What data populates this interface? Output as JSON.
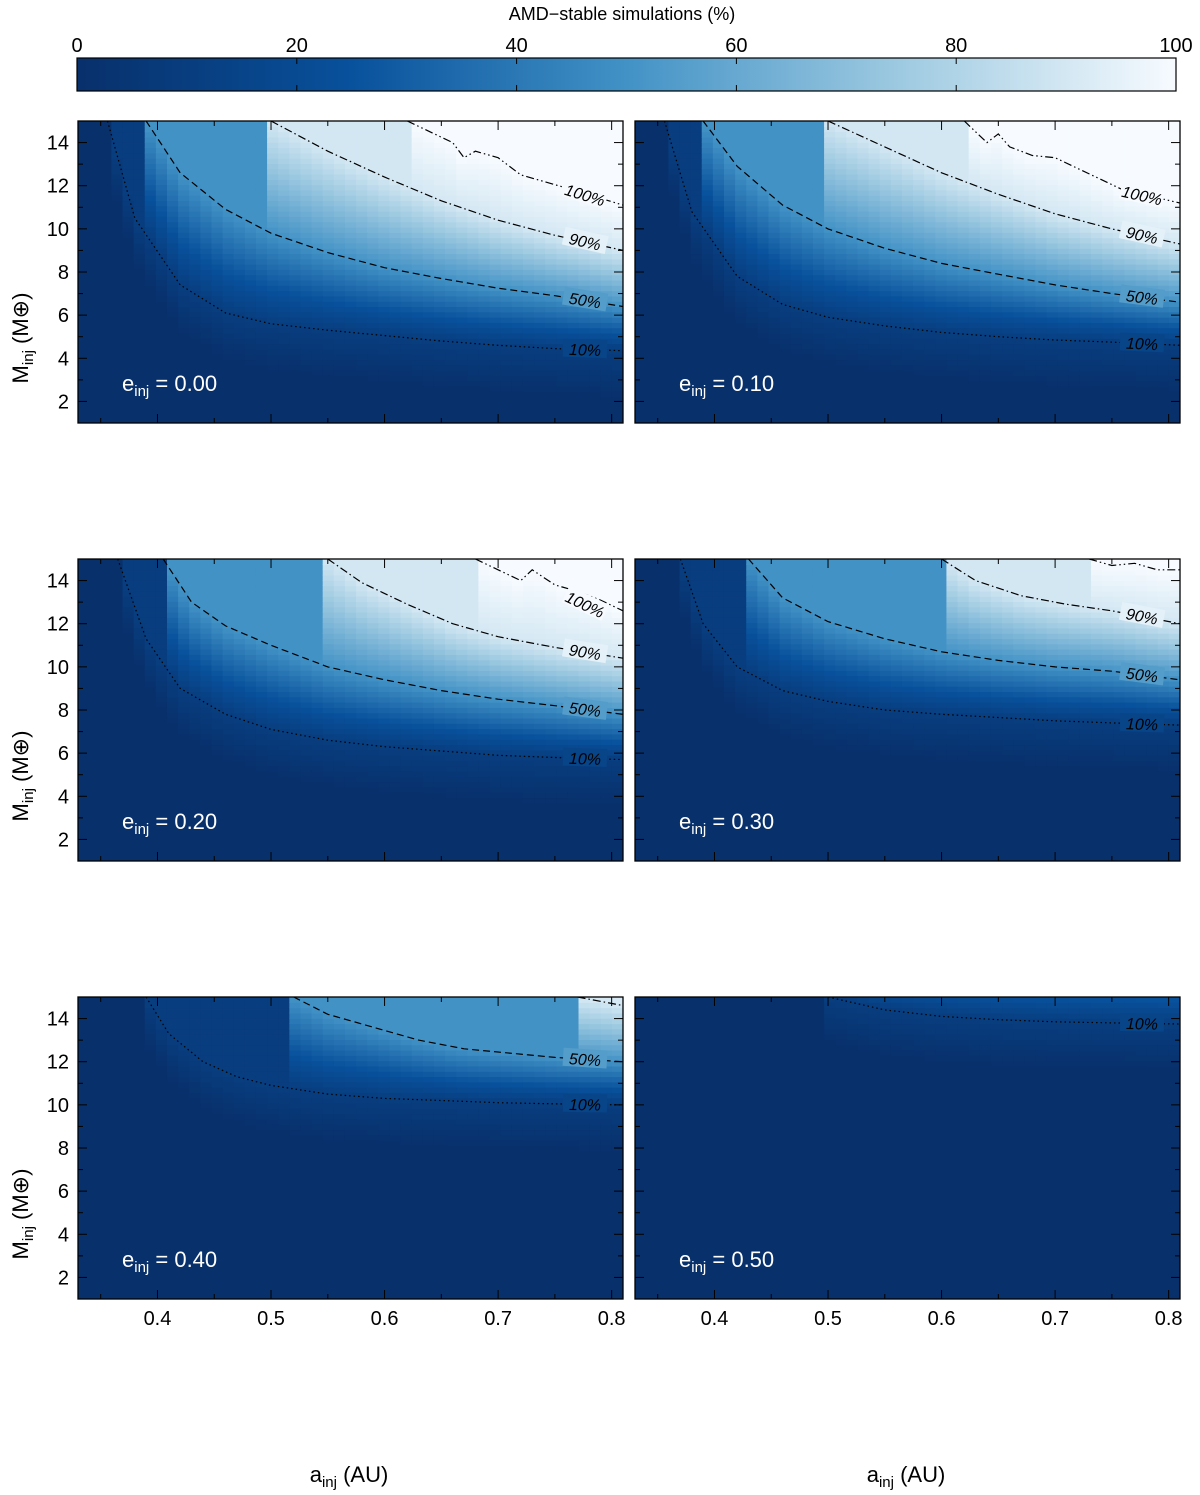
{
  "chart_data": {
    "type": "heatmap",
    "colorbar": {
      "title": "AMD−stable simulations (%)",
      "range": [
        0,
        100
      ],
      "ticks": [
        0,
        20,
        40,
        60,
        80,
        100
      ],
      "colors": [
        "#08306b",
        "#08519c",
        "#4292c6",
        "#9ecae1",
        "#f7fbff"
      ]
    },
    "xlabel_main": "a",
    "xlabel_sub": "inj",
    "xlabel_unit": " (AU)",
    "ylabel_main": "M",
    "ylabel_sub": "inj",
    "ylabel_unit": " (M⊕)",
    "xlim": [
      0.33,
      0.81
    ],
    "ylim": [
      1,
      15
    ],
    "xticks": [
      0.4,
      0.5,
      0.6,
      0.7,
      0.8
    ],
    "yticks": [
      2,
      4,
      6,
      8,
      10,
      12,
      14
    ],
    "grid": false,
    "panels": [
      {
        "e_prefix": "e",
        "e_sub": "inj",
        "e_value": " = 0.00",
        "contours": [
          {
            "level": 10,
            "label": "10%",
            "style": "dotted",
            "x": [
              0.356,
              0.38,
              0.42,
              0.46,
              0.5,
              0.55,
              0.6,
              0.65,
              0.7,
              0.75,
              0.81
            ],
            "y": [
              15,
              10.5,
              7.4,
              6.1,
              5.6,
              5.3,
              5.05,
              4.8,
              4.6,
              4.45,
              4.35
            ]
          },
          {
            "level": 50,
            "label": "50%",
            "style": "dashed",
            "x": [
              0.39,
              0.42,
              0.46,
              0.5,
              0.55,
              0.6,
              0.65,
              0.7,
              0.75,
              0.81
            ],
            "y": [
              15,
              12.6,
              10.9,
              9.8,
              8.9,
              8.2,
              7.7,
              7.25,
              6.9,
              6.4
            ]
          },
          {
            "level": 90,
            "label": "90%",
            "style": "dashdot",
            "x": [
              0.5,
              0.55,
              0.6,
              0.65,
              0.7,
              0.75,
              0.81
            ],
            "y": [
              15,
              13.6,
              12.4,
              11.3,
              10.4,
              9.7,
              9.0
            ]
          },
          {
            "level": 100,
            "label": "100%",
            "style": "dashdotdot",
            "x": [
              0.62,
              0.64,
              0.66,
              0.67,
              0.68,
              0.7,
              0.72,
              0.74,
              0.76,
              0.81
            ],
            "y": [
              15,
              14.5,
              14.0,
              13.3,
              13.6,
              13.3,
              12.5,
              12.2,
              11.9,
              11.1
            ]
          }
        ]
      },
      {
        "e_prefix": "e",
        "e_sub": "inj",
        "e_value": " = 0.10",
        "contours": [
          {
            "level": 10,
            "label": "10%",
            "style": "dotted",
            "x": [
              0.356,
              0.38,
              0.42,
              0.46,
              0.5,
              0.55,
              0.6,
              0.65,
              0.7,
              0.75,
              0.81
            ],
            "y": [
              15,
              10.8,
              7.8,
              6.5,
              5.9,
              5.5,
              5.2,
              5.0,
              4.85,
              4.75,
              4.6
            ]
          },
          {
            "level": 50,
            "label": "50%",
            "style": "dashed",
            "x": [
              0.39,
              0.42,
              0.46,
              0.5,
              0.55,
              0.6,
              0.65,
              0.7,
              0.75,
              0.81
            ],
            "y": [
              15,
              12.9,
              11.1,
              10.0,
              9.1,
              8.4,
              7.9,
              7.4,
              7.0,
              6.6
            ]
          },
          {
            "level": 90,
            "label": "90%",
            "style": "dashdot",
            "x": [
              0.5,
              0.55,
              0.6,
              0.65,
              0.7,
              0.75,
              0.81
            ],
            "y": [
              15,
              13.8,
              12.6,
              11.6,
              10.7,
              10.0,
              9.3
            ]
          },
          {
            "level": 100,
            "label": "100%",
            "style": "dashdotdot",
            "x": [
              0.62,
              0.63,
              0.64,
              0.65,
              0.66,
              0.68,
              0.7,
              0.72,
              0.74,
              0.76,
              0.81
            ],
            "y": [
              15,
              14.5,
              14.0,
              14.4,
              13.8,
              13.4,
              13.3,
              12.8,
              12.3,
              11.8,
              11.2
            ]
          }
        ]
      },
      {
        "e_prefix": "e",
        "e_sub": "inj",
        "e_value": " = 0.20",
        "contours": [
          {
            "level": 10,
            "label": "10%",
            "style": "dotted",
            "x": [
              0.365,
              0.39,
              0.42,
              0.46,
              0.5,
              0.55,
              0.6,
              0.65,
              0.7,
              0.75,
              0.81
            ],
            "y": [
              15,
              11.3,
              9.0,
              7.8,
              7.1,
              6.6,
              6.3,
              6.1,
              5.9,
              5.8,
              5.7
            ]
          },
          {
            "level": 50,
            "label": "50%",
            "style": "dashed",
            "x": [
              0.405,
              0.43,
              0.46,
              0.5,
              0.55,
              0.6,
              0.65,
              0.7,
              0.75,
              0.81
            ],
            "y": [
              15,
              13.0,
              11.9,
              11.0,
              10.0,
              9.4,
              8.9,
              8.5,
              8.2,
              7.8
            ]
          },
          {
            "level": 90,
            "label": "90%",
            "style": "dashdot",
            "x": [
              0.55,
              0.58,
              0.62,
              0.66,
              0.7,
              0.75,
              0.81
            ],
            "y": [
              15,
              13.9,
              12.9,
              12.0,
              11.4,
              10.9,
              10.4
            ]
          },
          {
            "level": 100,
            "label": "100%",
            "style": "dashdotdot",
            "x": [
              0.68,
              0.7,
              0.72,
              0.73,
              0.75,
              0.77,
              0.79,
              0.81
            ],
            "y": [
              15,
              14.5,
              14.0,
              14.5,
              13.8,
              13.5,
              13.1,
              12.6
            ]
          }
        ]
      },
      {
        "e_prefix": "e",
        "e_sub": "inj",
        "e_value": " = 0.30",
        "contours": [
          {
            "level": 10,
            "label": "10%",
            "style": "dotted",
            "x": [
              0.37,
              0.39,
              0.42,
              0.46,
              0.5,
              0.55,
              0.6,
              0.65,
              0.7,
              0.75,
              0.81
            ],
            "y": [
              15,
              12.0,
              10.0,
              8.9,
              8.4,
              8.0,
              7.8,
              7.65,
              7.5,
              7.4,
              7.3
            ]
          },
          {
            "level": 50,
            "label": "50%",
            "style": "dashed",
            "x": [
              0.43,
              0.46,
              0.5,
              0.55,
              0.6,
              0.65,
              0.7,
              0.75,
              0.81
            ],
            "y": [
              15,
              13.2,
              12.1,
              11.3,
              10.7,
              10.3,
              10.0,
              9.8,
              9.4
            ]
          },
          {
            "level": 90,
            "label": "90%",
            "style": "dashdot",
            "x": [
              0.6,
              0.63,
              0.67,
              0.71,
              0.75,
              0.81
            ],
            "y": [
              15,
              14.0,
              13.3,
              12.9,
              12.6,
              12.0
            ]
          },
          {
            "level": 100,
            "label": "",
            "style": "dashdotdot",
            "x": [
              0.73,
              0.75,
              0.77,
              0.79,
              0.81
            ],
            "y": [
              15,
              14.7,
              14.8,
              14.5,
              14.5
            ]
          }
        ]
      },
      {
        "e_prefix": "e",
        "e_sub": "inj",
        "e_value": " = 0.40",
        "contours": [
          {
            "level": 10,
            "label": "10%",
            "style": "dotted",
            "x": [
              0.39,
              0.41,
              0.44,
              0.47,
              0.5,
              0.55,
              0.6,
              0.65,
              0.7,
              0.75,
              0.81
            ],
            "y": [
              15,
              13.3,
              12.0,
              11.3,
              10.9,
              10.5,
              10.3,
              10.2,
              10.1,
              10.05,
              10.0
            ]
          },
          {
            "level": 50,
            "label": "50%",
            "style": "dashed",
            "x": [
              0.52,
              0.55,
              0.59,
              0.63,
              0.67,
              0.71,
              0.75,
              0.81
            ],
            "y": [
              15,
              14.2,
              13.6,
              13.0,
              12.6,
              12.4,
              12.2,
              12.0
            ]
          },
          {
            "level": 90,
            "label": "",
            "style": "dashdot",
            "x": [
              0.77,
              0.79,
              0.81
            ],
            "y": [
              15,
              14.8,
              14.6
            ]
          }
        ]
      },
      {
        "e_prefix": "e",
        "e_sub": "inj",
        "e_value": " = 0.50",
        "contours": [
          {
            "level": 10,
            "label": "10%",
            "style": "dotted",
            "x": [
              0.5,
              0.55,
              0.6,
              0.65,
              0.7,
              0.75,
              0.81
            ],
            "y": [
              15,
              14.4,
              14.1,
              13.95,
              13.85,
              13.8,
              13.75
            ]
          }
        ]
      }
    ]
  }
}
